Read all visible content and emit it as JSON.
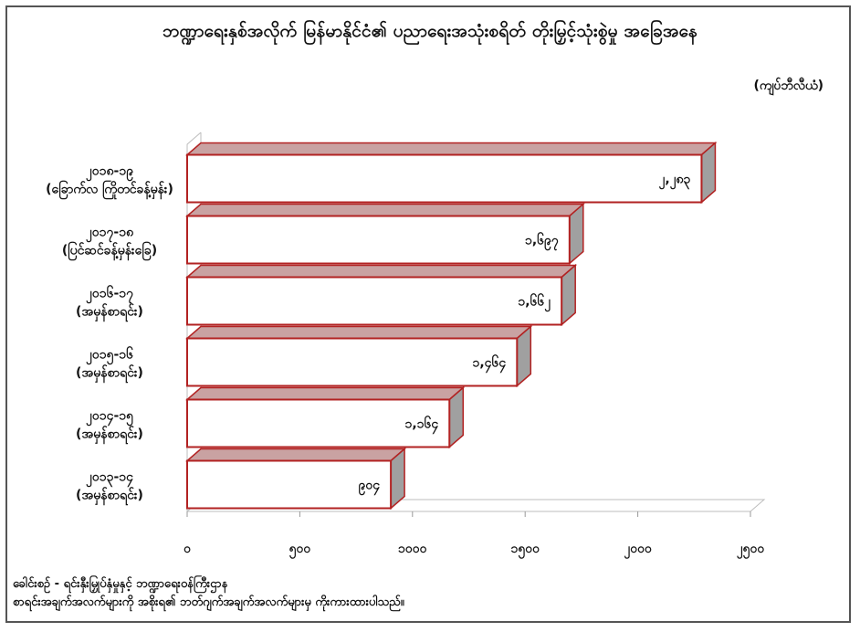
{
  "chart_data": {
    "type": "bar",
    "orientation": "horizontal",
    "style": "3d",
    "title": "ဘဏ္ဍာရေးနှစ်အလိုက် မြန်မာနိုင်ငံ၏ ပညာရေးအသုံးစရိတ် တိုးမြှင့်သုံးစွဲမှု အခြေအနေ",
    "unit": "(ကျပ်ဘီလီယံ)",
    "categories": [
      [
        "၂၀၁၈-၁၉",
        "(ခြောက်လ ကြိုတင်ခန့်မှန်း)"
      ],
      [
        "၂၀၁၇-၁၈",
        "(ပြင်ဆင်ခန့်မှန်းခြေ)"
      ],
      [
        "၂၀၁၆-၁၇",
        "(အမှန်စာရင်း)"
      ],
      [
        "၂၀၁၅-၁၆",
        "(အမှန်စာရင်း)"
      ],
      [
        "၂၀၁၄-၁၅",
        "(အမှန်စာရင်း)"
      ],
      [
        "၂၀၁၃-၁၄",
        "(အမှန်စာရင်း)"
      ]
    ],
    "values": [
      2283,
      1697,
      1662,
      1464,
      1164,
      904
    ],
    "value_labels": [
      "၂,၂၈၃",
      "၁,၆၉၇",
      "၁,၆၆၂",
      "၁,၄၆၄",
      "၁,၁၆၄",
      "၉၀၄"
    ],
    "xlim": [
      0,
      2500
    ],
    "xticks": [
      0,
      500,
      1000,
      1500,
      2000,
      2500
    ],
    "xtick_labels": [
      "၀",
      "၅၀၀",
      "၁၀၀၀",
      "၁၅၀၀",
      "၂၀၀၀",
      "၂၅၀၀"
    ],
    "grid": false,
    "colors": {
      "bar_face": "#ffffff",
      "bar_border": "#b22222",
      "bar_top": "#c9a2a2",
      "bar_side": "#a0a0a0"
    }
  },
  "notes": [
    "ခေါင်းစဉ် - ရင်းနှီးမြှုပ်နှံမှုနှင့် ဘဏ္ဍာရေးဝန်ကြီးဌာန",
    "စာရင်းအချက်အလက်များကို အစိုးရ၏ ဘတ်ဂျက်အချက်အလက်များမှ ကိုးကားထားပါသည်။"
  ]
}
